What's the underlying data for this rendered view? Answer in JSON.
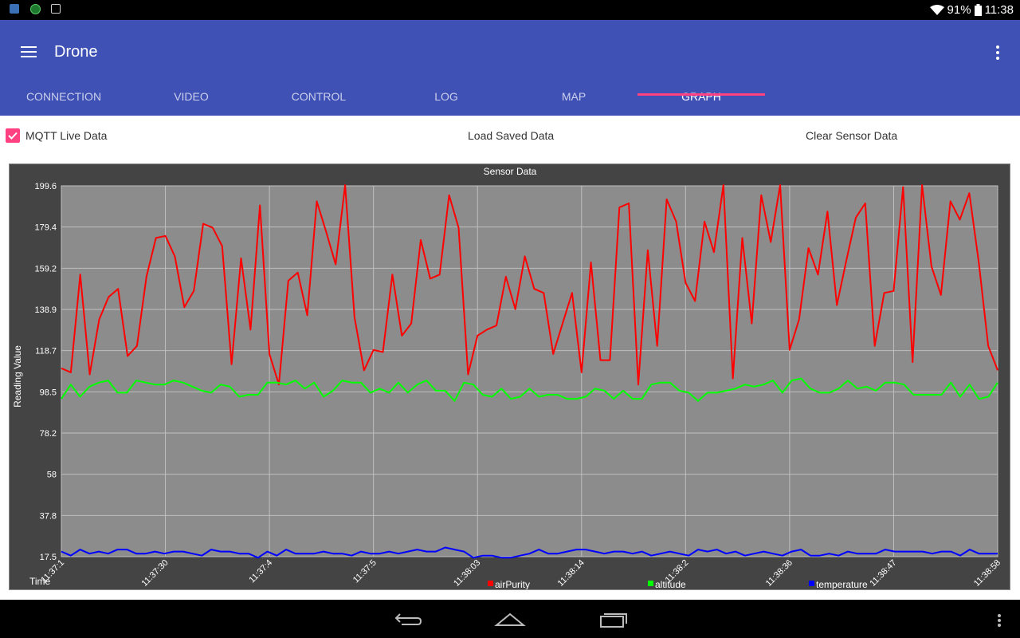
{
  "status_bar": {
    "battery": "91%",
    "time": "11:38",
    "icons": [
      "notification-icon",
      "badge-icon",
      "image-icon",
      "wifi-icon",
      "battery-icon"
    ]
  },
  "app_bar": {
    "title": "Drone",
    "tabs": [
      {
        "label": "CONNECTION"
      },
      {
        "label": "VIDEO"
      },
      {
        "label": "CONTROL"
      },
      {
        "label": "LOG"
      },
      {
        "label": "MAP"
      },
      {
        "label": "GRAPH"
      }
    ],
    "active_tab": "GRAPH"
  },
  "controls": {
    "mqtt_label": "MQTT Live Data",
    "mqtt_checked": true,
    "load_label": "Load Saved Data",
    "clear_label": "Clear Sensor Data"
  },
  "colors": {
    "app_bar": "#3f51b5",
    "accent": "#ff4081",
    "plot_bg": "#8c8c8c",
    "chart_frame": "#444444"
  },
  "chart_data": {
    "type": "line",
    "title": "Sensor Data",
    "ylabel": "Reading Value",
    "xlabel": "Time",
    "ylim": [
      17.5,
      199.6
    ],
    "y_ticks": [
      "199.6",
      "179.4",
      "159.2",
      "138.9",
      "118.7",
      "98.5",
      "78.2",
      "58",
      "37.8",
      "17.5"
    ],
    "x_ticks": [
      "11:37:1",
      "11:37:30",
      "11:37:4",
      "11:37:5",
      "11:38:03",
      "11:38:14",
      "11:38:2",
      "11:38:36",
      "11:38:47",
      "11:38:58"
    ],
    "grid": true,
    "legend": "bottom",
    "series": [
      {
        "name": "airPurity",
        "color": "#ff0000",
        "values": [
          110,
          108,
          156,
          107,
          134,
          145,
          149,
          116,
          121,
          155,
          174,
          175,
          165,
          140,
          148,
          181,
          179,
          170,
          112,
          164,
          129,
          190,
          117,
          102,
          153,
          157,
          136,
          192,
          177,
          161,
          200,
          135,
          109,
          119,
          118,
          156,
          126,
          132,
          173,
          154,
          156,
          195,
          179,
          107,
          126,
          129,
          131,
          155,
          139,
          165,
          149,
          147,
          117,
          132,
          147,
          108,
          162,
          114,
          114,
          189,
          191,
          102,
          168,
          121,
          193,
          182,
          152,
          143,
          182,
          167,
          200,
          105,
          174,
          132,
          195,
          172,
          200,
          119,
          134,
          169,
          156,
          187,
          141,
          163,
          184,
          191,
          121,
          147,
          148,
          199,
          113,
          200,
          160,
          146,
          192,
          183,
          196,
          162,
          121,
          109
        ]
      },
      {
        "name": "altitude",
        "color": "#00ff00",
        "values": [
          95,
          102,
          96,
          101,
          103,
          104,
          98,
          98,
          104,
          103,
          102,
          102,
          104,
          103,
          101,
          99,
          98,
          102,
          101,
          96,
          97,
          97,
          103,
          103,
          102,
          104,
          100,
          103,
          96,
          99,
          104,
          103,
          103,
          98,
          100,
          98,
          103,
          98,
          102,
          104,
          99,
          99,
          94,
          103,
          102,
          97,
          96,
          100,
          95,
          96,
          100,
          96,
          97,
          97,
          95,
          95,
          96,
          100,
          99,
          95,
          99,
          95,
          95,
          102,
          103,
          103,
          99,
          98,
          94,
          98,
          98,
          99,
          100,
          102,
          101,
          102,
          104,
          98,
          104,
          105,
          100,
          98,
          98,
          100,
          104,
          100,
          101,
          99,
          103,
          103,
          102,
          97,
          97,
          97,
          97,
          103,
          96,
          102,
          95,
          96,
          103
        ]
      },
      {
        "name": "temperature",
        "color": "#0000ff",
        "values": [
          20,
          18,
          21,
          19,
          20,
          19,
          21,
          21,
          19,
          19,
          20,
          19,
          20,
          20,
          19,
          18,
          21,
          20,
          20,
          19,
          19,
          17,
          20,
          18,
          21,
          19,
          19,
          19,
          20,
          19,
          19,
          18,
          20,
          19,
          19,
          20,
          19,
          20,
          21,
          20,
          20,
          22,
          21,
          20,
          17,
          18,
          18,
          17,
          17,
          18,
          19,
          21,
          19,
          19,
          20,
          21,
          21,
          20,
          19,
          20,
          20,
          19,
          20,
          18,
          19,
          20,
          19,
          18,
          21,
          20,
          21,
          19,
          20,
          18,
          19,
          20,
          19,
          18,
          20,
          21,
          18,
          18,
          19,
          18,
          20,
          19,
          19,
          19,
          21,
          20,
          20,
          20,
          20,
          19,
          20,
          20,
          18,
          21,
          19,
          19,
          19
        ]
      }
    ]
  }
}
